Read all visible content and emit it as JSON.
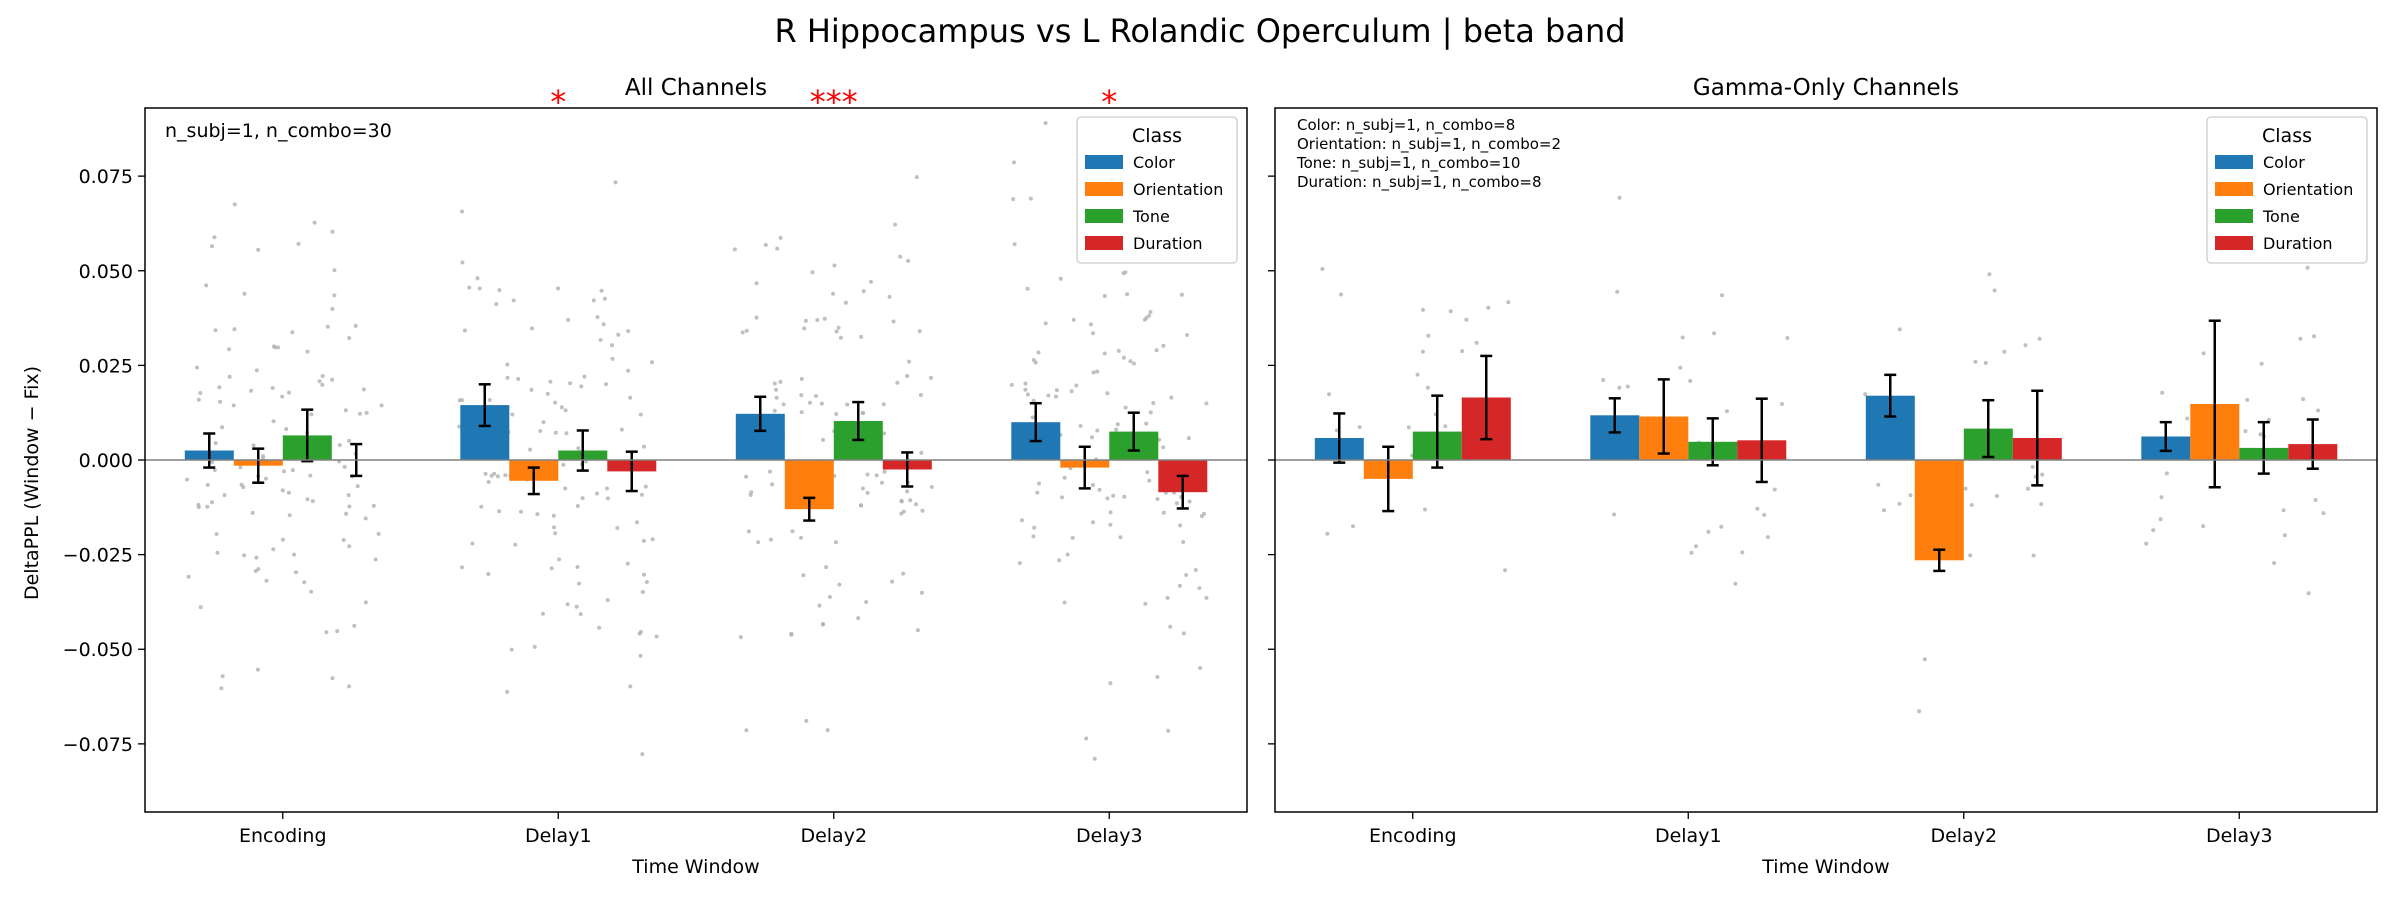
{
  "suptitle": "R Hippocampus vs L Rolandic Operculum  |  beta band",
  "shared": {
    "ylabel": "DeltaPPL (Window − Fix)",
    "xlabel": "Time Window",
    "legend_title": "Class",
    "ylim": [
      -0.093,
      0.093
    ],
    "yticks": [
      -0.075,
      -0.05,
      -0.025,
      0.0,
      0.025,
      0.05,
      0.075
    ],
    "ytick_labels": [
      "−0.075",
      "−0.050",
      "−0.025",
      "0.000",
      "0.025",
      "0.050",
      "0.075"
    ],
    "legend_placement": "top-right",
    "grid": false
  },
  "colors": {
    "Color": "#1f77b4",
    "Orientation": "#ff7f0e",
    "Tone": "#2ca02c",
    "Duration": "#d62728",
    "significance": "#ff0000",
    "jitter": "#b0b0b0"
  },
  "chart_data": [
    {
      "type": "bar",
      "title": "All Channels",
      "annotation_lines": [
        "n_subj=1, n_combo=30"
      ],
      "categories": [
        "Encoding",
        "Delay1",
        "Delay2",
        "Delay3"
      ],
      "series": [
        {
          "name": "Color",
          "values": [
            0.0025,
            0.0145,
            0.0122,
            0.01
          ],
          "errors": [
            0.0045,
            0.0055,
            0.0045,
            0.005
          ]
        },
        {
          "name": "Orientation",
          "values": [
            -0.0015,
            -0.0055,
            -0.013,
            -0.002
          ],
          "errors": [
            0.0045,
            0.0035,
            0.003,
            0.0055
          ]
        },
        {
          "name": "Tone",
          "values": [
            0.0065,
            0.0025,
            0.0103,
            0.0075
          ],
          "errors": [
            0.0068,
            0.0053,
            0.005,
            0.005
          ]
        },
        {
          "name": "Duration",
          "values": [
            0.0,
            -0.003,
            -0.0025,
            -0.0085
          ],
          "errors": [
            0.0042,
            0.0052,
            0.0045,
            0.0043
          ]
        }
      ],
      "significance": [
        {
          "category": "Delay1",
          "label": "*"
        },
        {
          "category": "Delay2",
          "label": "***"
        },
        {
          "category": "Delay3",
          "label": "*"
        }
      ],
      "jitter_points_per_bar": 30,
      "ylim": [
        -0.093,
        0.093
      ]
    },
    {
      "type": "bar",
      "title": "Gamma-Only Channels",
      "annotation_lines": [
        "Color: n_subj=1, n_combo=8",
        "Orientation: n_subj=1, n_combo=2",
        "Tone: n_subj=1, n_combo=10",
        "Duration: n_subj=1, n_combo=8"
      ],
      "categories": [
        "Encoding",
        "Delay1",
        "Delay2",
        "Delay3"
      ],
      "series": [
        {
          "name": "Color",
          "values": [
            0.0058,
            0.0118,
            0.017,
            0.0062
          ],
          "errors": [
            0.0065,
            0.0045,
            0.0055,
            0.0038
          ]
        },
        {
          "name": "Orientation",
          "values": [
            -0.005,
            0.0115,
            -0.0265,
            0.0148
          ],
          "errors": [
            0.0085,
            0.0098,
            0.0028,
            0.022
          ]
        },
        {
          "name": "Tone",
          "values": [
            0.0075,
            0.0048,
            0.0083,
            0.0032
          ],
          "errors": [
            0.0095,
            0.0062,
            0.0075,
            0.0068
          ]
        },
        {
          "name": "Duration",
          "values": [
            0.0165,
            0.0052,
            0.0058,
            0.0042
          ],
          "errors": [
            0.011,
            0.011,
            0.0125,
            0.0065
          ]
        }
      ],
      "significance": [],
      "jitter_points_per_bar": [
        8,
        2,
        10,
        8
      ],
      "ylim": [
        -0.093,
        0.093
      ]
    }
  ]
}
